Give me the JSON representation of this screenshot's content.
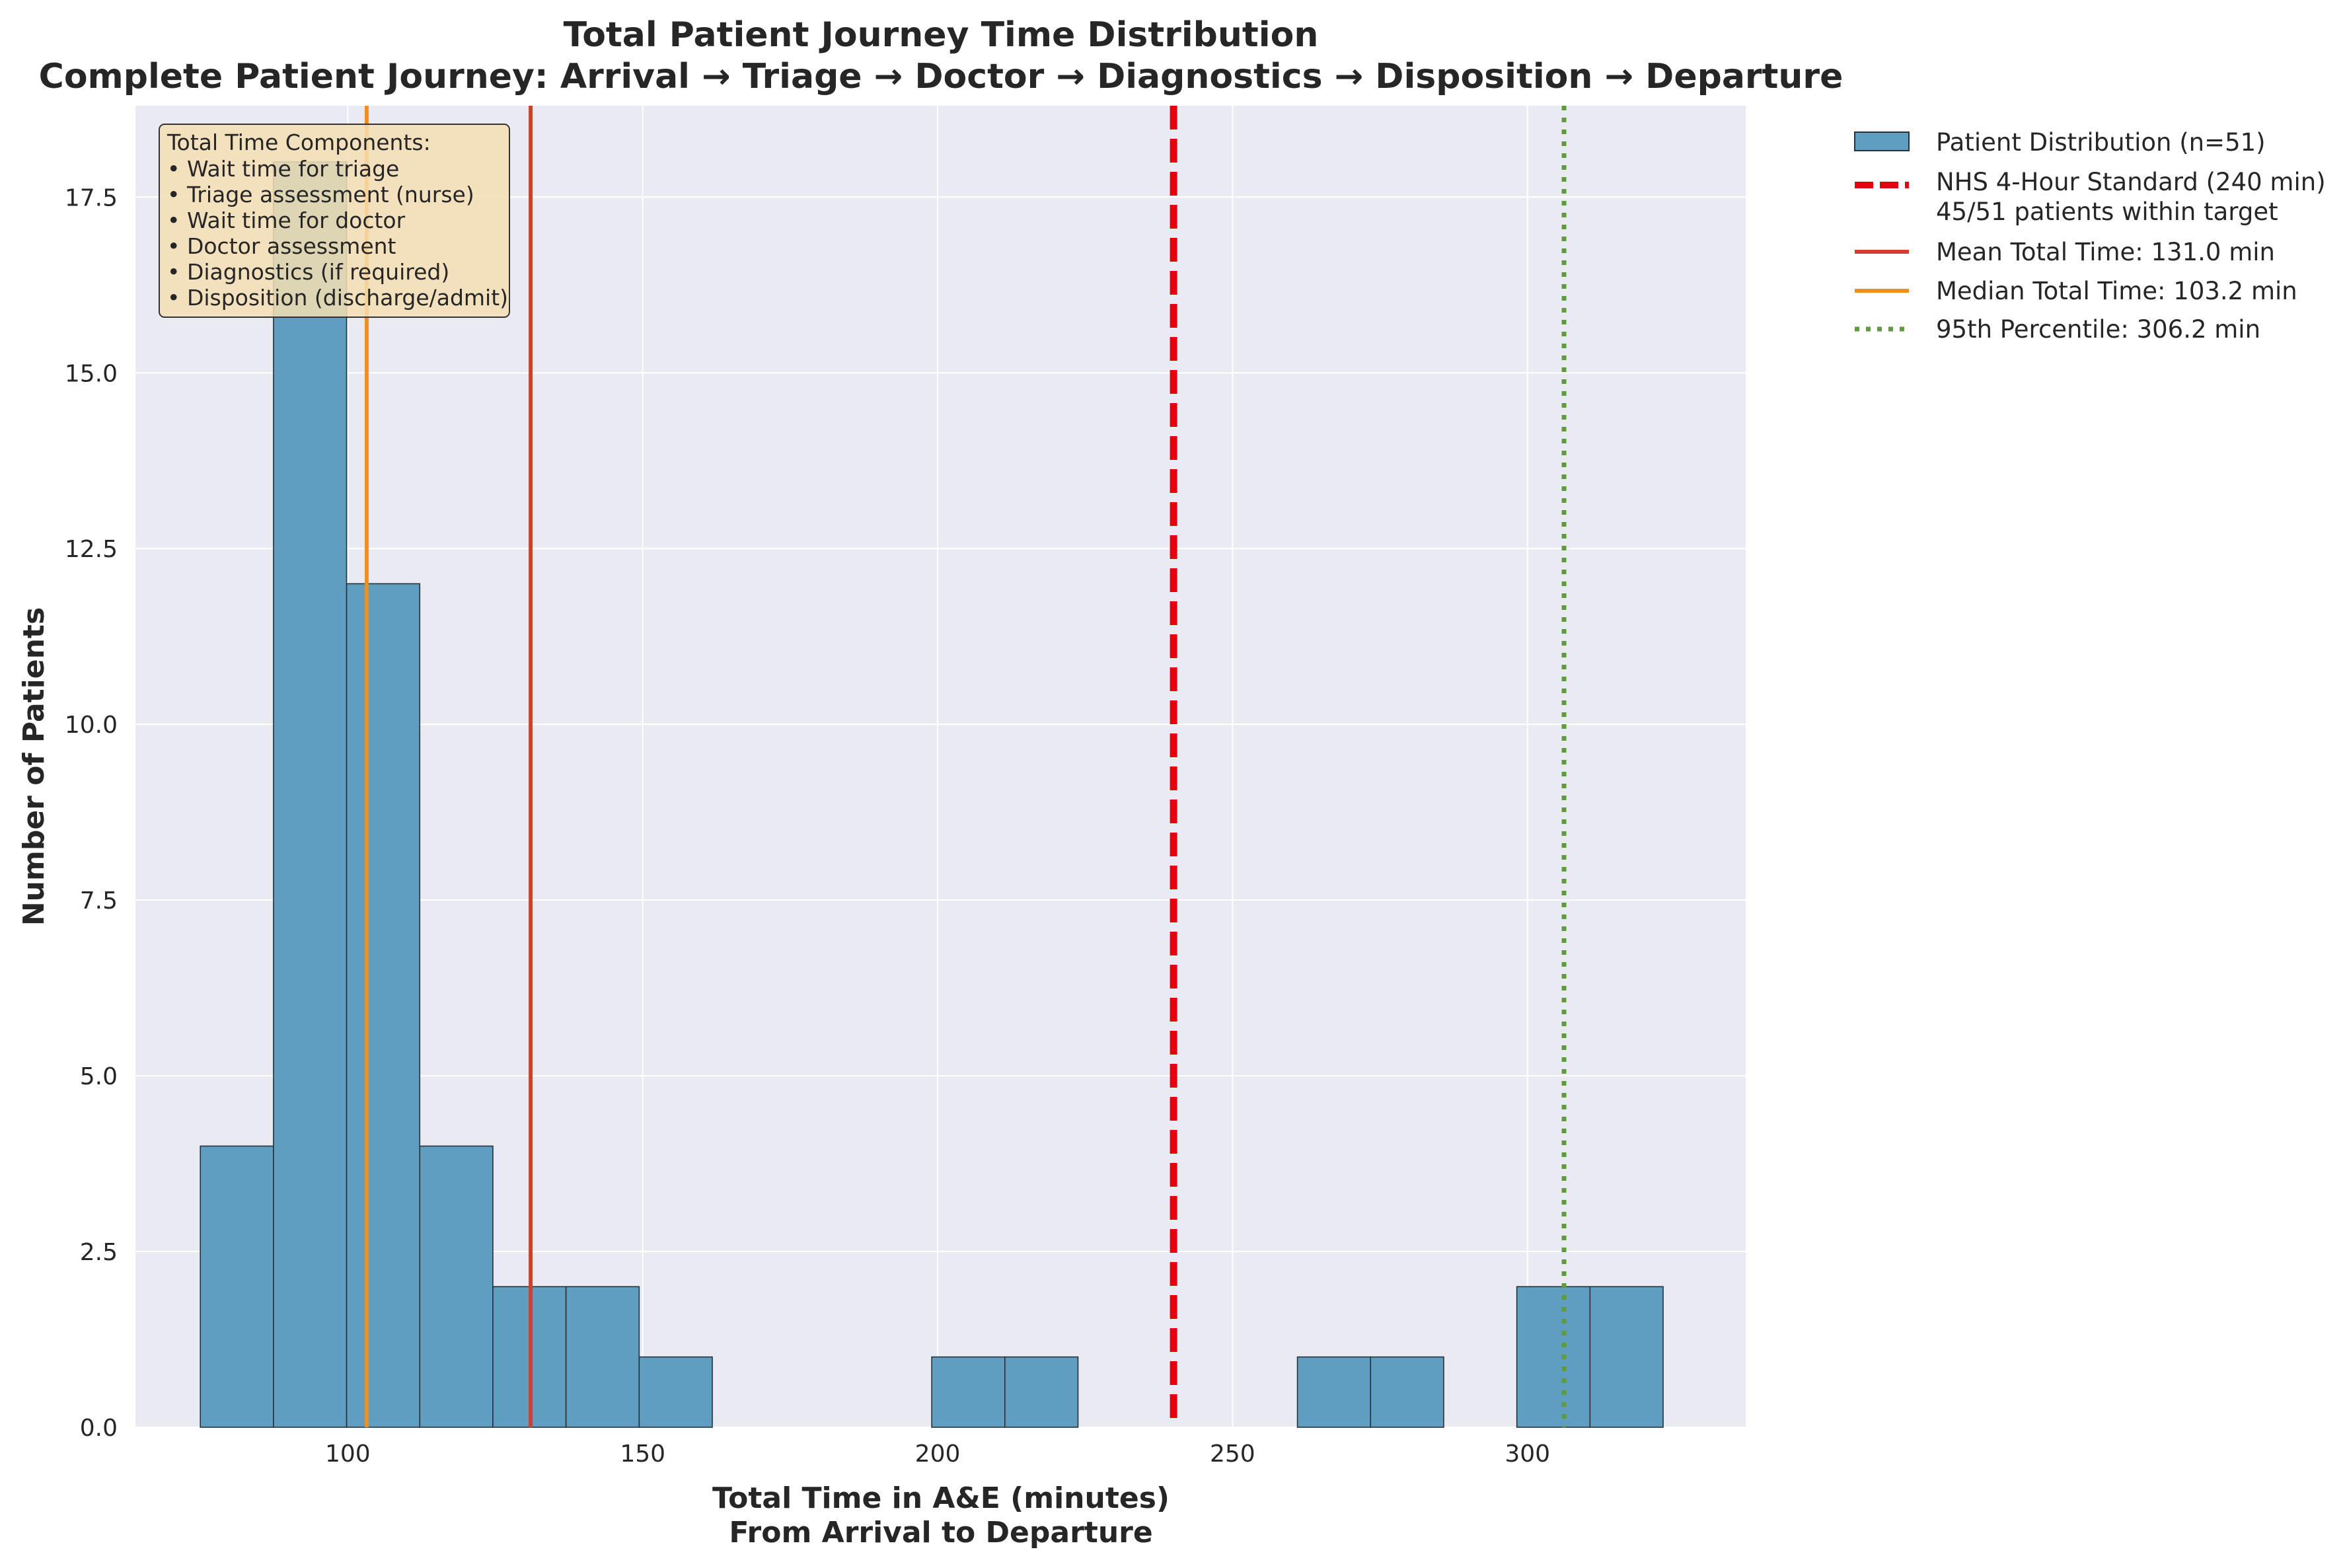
{
  "chart_data": {
    "type": "bar",
    "title": "Total Patient Journey Time Distribution",
    "subtitle": "Complete Patient Journey: Arrival → Triage → Doctor → Diagnostics → Disposition → Departure",
    "xlabel": "Total Time in A&E (minutes)",
    "xlabel_line2": "From Arrival to Departure",
    "ylabel": "Number of Patients",
    "xlim": [
      64,
      337
    ],
    "ylim": [
      0,
      18.8
    ],
    "xticks": [
      100,
      150,
      200,
      250,
      300
    ],
    "yticks": [
      0.0,
      2.5,
      5.0,
      7.5,
      10.0,
      12.5,
      15.0,
      17.5
    ],
    "grid": true,
    "legend_position": "outside-top-right",
    "bins": [
      {
        "start": 75.0,
        "end": 87.4,
        "count": 4
      },
      {
        "start": 87.4,
        "end": 99.8,
        "count": 18
      },
      {
        "start": 99.8,
        "end": 112.2,
        "count": 12
      },
      {
        "start": 112.2,
        "end": 124.6,
        "count": 4
      },
      {
        "start": 124.6,
        "end": 137.0,
        "count": 2
      },
      {
        "start": 137.0,
        "end": 149.4,
        "count": 2
      },
      {
        "start": 149.4,
        "end": 161.8,
        "count": 1
      },
      {
        "start": 161.8,
        "end": 174.2,
        "count": 0
      },
      {
        "start": 174.2,
        "end": 186.6,
        "count": 0
      },
      {
        "start": 186.6,
        "end": 199.0,
        "count": 0
      },
      {
        "start": 199.0,
        "end": 211.4,
        "count": 1
      },
      {
        "start": 211.4,
        "end": 223.8,
        "count": 1
      },
      {
        "start": 223.8,
        "end": 236.2,
        "count": 0
      },
      {
        "start": 236.2,
        "end": 248.6,
        "count": 0
      },
      {
        "start": 248.6,
        "end": 261.0,
        "count": 0
      },
      {
        "start": 261.0,
        "end": 273.4,
        "count": 1
      },
      {
        "start": 273.4,
        "end": 285.8,
        "count": 1
      },
      {
        "start": 285.8,
        "end": 298.2,
        "count": 0
      },
      {
        "start": 298.2,
        "end": 310.6,
        "count": 2
      },
      {
        "start": 310.6,
        "end": 323.0,
        "count": 2
      }
    ],
    "reference_lines": [
      {
        "name": "NHS 4-Hour Standard (240 min)",
        "name_line2": "45/51 patients within target",
        "x": 240,
        "color": "#e3000f",
        "style": "dashed"
      },
      {
        "name": "Mean Total Time: 131.0 min",
        "x": 131.0,
        "color": "#d1402b",
        "style": "solid"
      },
      {
        "name": "Median Total Time: 103.2 min",
        "x": 103.2,
        "color": "#ef8f1c",
        "style": "solid"
      },
      {
        "name": "95th Percentile: 306.2 min",
        "x": 306.2,
        "color": "#5f9a3e",
        "style": "dotted"
      }
    ],
    "histogram_legend": "Patient Distribution (n=51)",
    "colors": {
      "bar_fill": "#5f9ec0",
      "bar_edge": "#26323a",
      "plot_bg": "#eaeaf2",
      "grid": "#ffffff",
      "note_bg": "#f5deb3"
    },
    "annotation": {
      "title": "Total Time Components:",
      "items": [
        "• Wait time for triage",
        "• Triage assessment (nurse)",
        "• Wait time for doctor",
        "• Doctor assessment",
        "• Diagnostics (if required)",
        "• Disposition (discharge/admit)"
      ]
    }
  }
}
